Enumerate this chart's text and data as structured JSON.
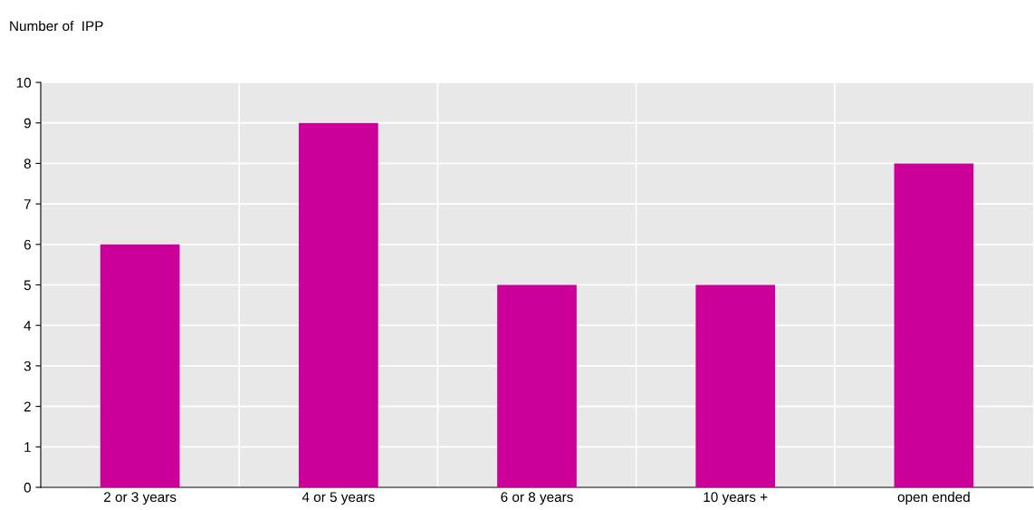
{
  "chart_data": {
    "type": "bar",
    "ylabel": "Number of  IPP",
    "categories": [
      "2 or 3 years",
      "4 or 5 years",
      "6 or 8 years",
      "10 years +",
      "open ended"
    ],
    "values": [
      6,
      9,
      5,
      5,
      8
    ],
    "color": "#cc0099",
    "ylim": [
      0,
      10
    ],
    "yticks": [
      0,
      1,
      2,
      3,
      4,
      5,
      6,
      7,
      8,
      9,
      10
    ],
    "grid": true
  }
}
